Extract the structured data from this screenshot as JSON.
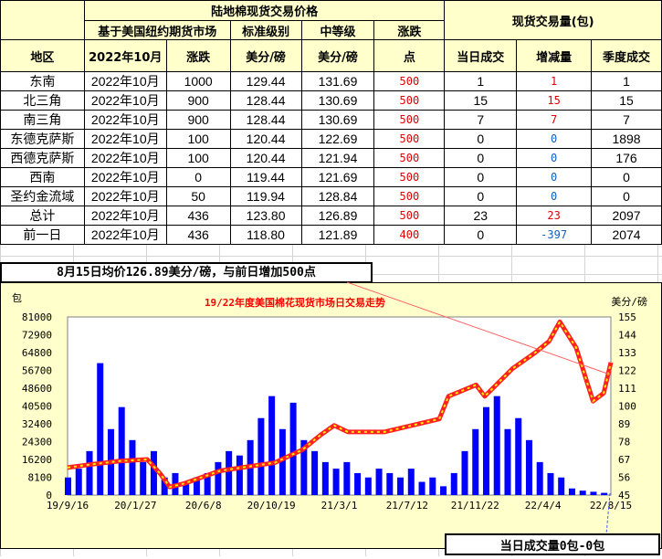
{
  "table": {
    "title": "陆地棉现货交易价格",
    "volume_title": "现货交易量(包)",
    "sub_futures": "基于美国纽约期货市场",
    "sub_standard": "标准级别",
    "sub_middle": "中等级",
    "sub_change": "涨跌",
    "col_region": "地区",
    "col_contract": "2022年10月",
    "col_change": "涨跌",
    "col_unit1": "美分/磅",
    "col_unit2": "美分/磅",
    "col_points": "点",
    "col_daily": "当日成交",
    "col_delta": "增减量",
    "col_season": "季度成交",
    "rows": [
      {
        "region": "东南",
        "contract": "2022年10月",
        "change": "1000",
        "standard": "129.44",
        "middle": "131.69",
        "points": "500",
        "daily": "1",
        "delta": "1",
        "season": "1"
      },
      {
        "region": "北三角",
        "contract": "2022年10月",
        "change": "900",
        "standard": "128.44",
        "middle": "130.69",
        "points": "500",
        "daily": "15",
        "delta": "15",
        "season": "15"
      },
      {
        "region": "南三角",
        "contract": "2022年10月",
        "change": "900",
        "standard": "128.44",
        "middle": "130.69",
        "points": "500",
        "daily": "7",
        "delta": "7",
        "season": "7"
      },
      {
        "region": "东德克萨斯",
        "contract": "2022年10月",
        "change": "100",
        "standard": "120.44",
        "middle": "122.69",
        "points": "500",
        "daily": "0",
        "delta": "0",
        "season": "1898"
      },
      {
        "region": "西德克萨斯",
        "contract": "2022年10月",
        "change": "100",
        "standard": "120.44",
        "middle": "121.94",
        "points": "500",
        "daily": "0",
        "delta": "0",
        "season": "176"
      },
      {
        "region": "西南",
        "contract": "2022年10月",
        "change": "0",
        "standard": "119.44",
        "middle": "121.69",
        "points": "500",
        "daily": "0",
        "delta": "0",
        "season": "0"
      },
      {
        "region": "圣约金流域",
        "contract": "2022年10月",
        "change": "50",
        "standard": "119.94",
        "middle": "128.84",
        "points": "500",
        "daily": "0",
        "delta": "0",
        "season": "0"
      },
      {
        "region": "总计",
        "contract": "2022年10月",
        "change": "436",
        "standard": "123.80",
        "middle": "126.89",
        "points": "500",
        "daily": "23",
        "delta": "23",
        "season": "2097"
      },
      {
        "region": "前一日",
        "contract": "2022年10月",
        "change": "436",
        "standard": "118.80",
        "middle": "121.89",
        "points": "400",
        "daily": "0",
        "delta": "-397",
        "season": "2074"
      }
    ]
  },
  "summary": "8月15日均价126.89美分/磅，与前日增加500点",
  "volume_note": "当日成交量0包-0包",
  "chart_data": {
    "type": "bar+line",
    "title": "19/22年度美国棉花现货市场日交易走势",
    "ylabel_left": "包",
    "ylabel_right": "美分/磅",
    "ylim_left": [
      0,
      81000
    ],
    "ylim_right": [
      45,
      155
    ],
    "yticks_left": [
      "0",
      "8100",
      "16200",
      "24300",
      "32400",
      "40500",
      "48600",
      "56700",
      "64800",
      "72900",
      "81000"
    ],
    "yticks_right": [
      "45",
      "56",
      "67",
      "78",
      "89",
      "100",
      "111",
      "122",
      "133",
      "144",
      "155"
    ],
    "xticks": [
      "19/9/16",
      "20/1/27",
      "20/6/8",
      "20/10/19",
      "21/3/1",
      "21/7/12",
      "21/11/22",
      "22/4/4",
      "22/8/15"
    ],
    "xlim": [
      "2019-09-16",
      "2022-08-15"
    ],
    "colors": {
      "volume": "#0000ff",
      "price": "#ff2020",
      "price_dash": "#ffee00",
      "title": "#ff0000"
    },
    "price": [
      [
        "2019-09-16",
        62
      ],
      [
        "2019-11-03",
        64
      ],
      [
        "2019-12-27",
        66
      ],
      [
        "2020-02-19",
        67
      ],
      [
        "2020-03-16",
        58
      ],
      [
        "2020-04-03",
        50
      ],
      [
        "2020-04-30",
        52
      ],
      [
        "2020-07-11",
        60
      ],
      [
        "2020-10-26",
        65
      ],
      [
        "2020-12-19",
        73
      ],
      [
        "2021-01-23",
        82
      ],
      [
        "2021-02-19",
        88
      ],
      [
        "2021-03-18",
        84
      ],
      [
        "2021-05-29",
        84
      ],
      [
        "2021-09-13",
        92
      ],
      [
        "2021-10-01",
        106
      ],
      [
        "2021-11-24",
        113
      ],
      [
        "2021-12-11",
        106
      ],
      [
        "2022-02-03",
        123
      ],
      [
        "2022-03-20",
        133
      ],
      [
        "2022-04-16",
        140
      ],
      [
        "2022-05-07",
        152
      ],
      [
        "2022-06-08",
        136
      ],
      [
        "2022-07-11",
        103
      ],
      [
        "2022-08-01",
        108
      ],
      [
        "2022-08-15",
        126.89
      ]
    ],
    "volume": [
      [
        "2019-09-16",
        8000
      ],
      [
        "2019-10-07",
        12000
      ],
      [
        "2019-10-28",
        20000
      ],
      [
        "2019-11-18",
        60000
      ],
      [
        "2019-12-09",
        30000
      ],
      [
        "2019-12-30",
        40000
      ],
      [
        "2020-01-20",
        25000
      ],
      [
        "2020-02-10",
        15000
      ],
      [
        "2020-03-02",
        20000
      ],
      [
        "2020-03-23",
        8000
      ],
      [
        "2020-04-13",
        10000
      ],
      [
        "2020-05-04",
        6000
      ],
      [
        "2020-05-25",
        8000
      ],
      [
        "2020-06-15",
        10000
      ],
      [
        "2020-07-06",
        15000
      ],
      [
        "2020-07-27",
        20000
      ],
      [
        "2020-08-17",
        18000
      ],
      [
        "2020-09-07",
        25000
      ],
      [
        "2020-09-28",
        35000
      ],
      [
        "2020-10-19",
        45000
      ],
      [
        "2020-11-09",
        30000
      ],
      [
        "2020-11-30",
        42000
      ],
      [
        "2020-12-21",
        25000
      ],
      [
        "2021-01-11",
        20000
      ],
      [
        "2021-02-01",
        15000
      ],
      [
        "2021-02-22",
        12000
      ],
      [
        "2021-03-15",
        15000
      ],
      [
        "2021-04-05",
        10000
      ],
      [
        "2021-04-26",
        8000
      ],
      [
        "2021-05-17",
        12000
      ],
      [
        "2021-06-07",
        10000
      ],
      [
        "2021-06-28",
        8000
      ],
      [
        "2021-07-19",
        12000
      ],
      [
        "2021-08-09",
        6000
      ],
      [
        "2021-08-30",
        8000
      ],
      [
        "2021-09-20",
        4000
      ],
      [
        "2021-10-11",
        10000
      ],
      [
        "2021-11-01",
        20000
      ],
      [
        "2021-11-22",
        30000
      ],
      [
        "2021-12-13",
        40000
      ],
      [
        "2022-01-03",
        45000
      ],
      [
        "2022-01-24",
        30000
      ],
      [
        "2022-02-14",
        35000
      ],
      [
        "2022-03-07",
        25000
      ],
      [
        "2022-03-28",
        15000
      ],
      [
        "2022-04-18",
        10000
      ],
      [
        "2022-05-09",
        8000
      ],
      [
        "2022-05-30",
        3000
      ],
      [
        "2022-06-20",
        2000
      ],
      [
        "2022-07-11",
        1500
      ],
      [
        "2022-08-01",
        1000
      ]
    ]
  }
}
